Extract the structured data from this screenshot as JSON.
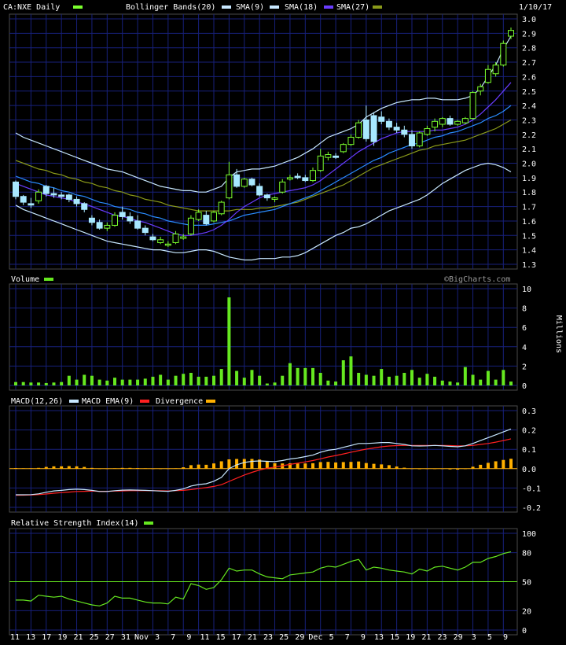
{
  "header": {
    "symbol": "CA:NXE Daily",
    "bb_label": "Bollinger Bands(20)",
    "sma9_label": "SMA(9)",
    "sma18_label": "SMA(18)",
    "sma27_label": "SMA(27)",
    "date": "1/10/17"
  },
  "watermark": "©BigCharts.com",
  "colors": {
    "background": "#000000",
    "grid": "#17207a",
    "frame": "#4a4a4a",
    "candle_up": "#000000",
    "candle_up_border": "#7bff2e",
    "candle_down": "#a8e8ff",
    "bollinger": "#c8e8ff",
    "sma9": "#6a3cff",
    "sma18": "#2a8cff",
    "sma27": "#8a9a1a",
    "volume": "#66e820",
    "macd": "#c8e8ff",
    "macd_ema": "#ff2020",
    "divergence": "#ffb000",
    "rsi": "#66e820",
    "rsi_line": "#66e820"
  },
  "chart_data": [
    {
      "panel": "price",
      "type": "candlestick",
      "title": "CA:NXE Daily",
      "ylim": [
        1.3,
        3.0
      ],
      "yticks": [
        "1.3",
        "1.4",
        "1.5",
        "1.6",
        "1.7",
        "1.8",
        "1.9",
        "2.0",
        "2.1",
        "2.2",
        "2.3",
        "2.4",
        "2.5",
        "2.6",
        "2.7",
        "2.8",
        "2.9",
        "3.0"
      ],
      "candles": [
        [
          1.87,
          1.88,
          1.75,
          1.77
        ],
        [
          1.77,
          1.78,
          1.71,
          1.73
        ],
        [
          1.72,
          1.76,
          1.69,
          1.71
        ],
        [
          1.74,
          1.82,
          1.72,
          1.8
        ],
        [
          1.84,
          1.85,
          1.77,
          1.79
        ],
        [
          1.79,
          1.83,
          1.76,
          1.78
        ],
        [
          1.78,
          1.8,
          1.75,
          1.77
        ],
        [
          1.78,
          1.79,
          1.73,
          1.75
        ],
        [
          1.75,
          1.77,
          1.7,
          1.72
        ],
        [
          1.72,
          1.73,
          1.66,
          1.68
        ],
        [
          1.62,
          1.64,
          1.57,
          1.59
        ],
        [
          1.59,
          1.61,
          1.54,
          1.55
        ],
        [
          1.55,
          1.59,
          1.53,
          1.57
        ],
        [
          1.57,
          1.66,
          1.56,
          1.64
        ],
        [
          1.66,
          1.7,
          1.61,
          1.63
        ],
        [
          1.63,
          1.66,
          1.58,
          1.6
        ],
        [
          1.6,
          1.64,
          1.54,
          1.55
        ],
        [
          1.55,
          1.57,
          1.5,
          1.52
        ],
        [
          1.49,
          1.51,
          1.46,
          1.47
        ],
        [
          1.45,
          1.49,
          1.44,
          1.47
        ],
        [
          1.44,
          1.46,
          1.42,
          1.44
        ],
        [
          1.45,
          1.53,
          1.44,
          1.51
        ],
        [
          1.48,
          1.51,
          1.47,
          1.49
        ],
        [
          1.51,
          1.64,
          1.5,
          1.62
        ],
        [
          1.61,
          1.68,
          1.6,
          1.66
        ],
        [
          1.64,
          1.67,
          1.57,
          1.58
        ],
        [
          1.6,
          1.67,
          1.59,
          1.66
        ],
        [
          1.65,
          1.74,
          1.64,
          1.73
        ],
        [
          1.76,
          2.01,
          1.75,
          1.92
        ],
        [
          1.92,
          1.96,
          1.83,
          1.84
        ],
        [
          1.84,
          1.9,
          1.83,
          1.89
        ],
        [
          1.89,
          1.9,
          1.84,
          1.85
        ],
        [
          1.84,
          1.86,
          1.77,
          1.78
        ],
        [
          1.78,
          1.79,
          1.74,
          1.76
        ],
        [
          1.75,
          1.77,
          1.73,
          1.76
        ],
        [
          1.8,
          1.89,
          1.79,
          1.87
        ],
        [
          1.89,
          1.92,
          1.88,
          1.9
        ],
        [
          1.91,
          1.93,
          1.89,
          1.9
        ],
        [
          1.9,
          1.92,
          1.87,
          1.88
        ],
        [
          1.88,
          1.97,
          1.87,
          1.95
        ],
        [
          1.95,
          2.1,
          1.94,
          2.05
        ],
        [
          2.04,
          2.08,
          2.02,
          2.06
        ],
        [
          2.05,
          2.07,
          2.03,
          2.04
        ],
        [
          2.08,
          2.14,
          2.07,
          2.13
        ],
        [
          2.13,
          2.2,
          2.12,
          2.18
        ],
        [
          2.18,
          2.3,
          2.17,
          2.28
        ],
        [
          2.3,
          2.4,
          2.15,
          2.17
        ],
        [
          2.33,
          2.35,
          2.12,
          2.15
        ],
        [
          2.32,
          2.36,
          2.27,
          2.29
        ],
        [
          2.29,
          2.31,
          2.23,
          2.25
        ],
        [
          2.25,
          2.28,
          2.21,
          2.23
        ],
        [
          2.23,
          2.26,
          2.18,
          2.2
        ],
        [
          2.2,
          2.23,
          2.1,
          2.12
        ],
        [
          2.12,
          2.22,
          2.11,
          2.21
        ],
        [
          2.2,
          2.26,
          2.19,
          2.24
        ],
        [
          2.25,
          2.31,
          2.22,
          2.29
        ],
        [
          2.27,
          2.32,
          2.25,
          2.31
        ],
        [
          2.31,
          2.33,
          2.26,
          2.27
        ],
        [
          2.27,
          2.3,
          2.26,
          2.29
        ],
        [
          2.28,
          2.32,
          2.27,
          2.31
        ],
        [
          2.31,
          2.5,
          2.3,
          2.49
        ],
        [
          2.5,
          2.55,
          2.47,
          2.53
        ],
        [
          2.56,
          2.68,
          2.55,
          2.65
        ],
        [
          2.62,
          2.7,
          2.6,
          2.68
        ],
        [
          2.68,
          2.85,
          2.67,
          2.83
        ],
        [
          2.88,
          2.94,
          2.86,
          2.92
        ]
      ],
      "bollinger_upper": [
        2.21,
        2.18,
        2.16,
        2.14,
        2.12,
        2.1,
        2.08,
        2.06,
        2.04,
        2.02,
        2.0,
        1.98,
        1.96,
        1.95,
        1.94,
        1.92,
        1.9,
        1.88,
        1.86,
        1.84,
        1.83,
        1.82,
        1.81,
        1.81,
        1.8,
        1.8,
        1.82,
        1.84,
        1.9,
        1.94,
        1.95,
        1.96,
        1.96,
        1.97,
        1.98,
        2.0,
        2.02,
        2.04,
        2.07,
        2.1,
        2.14,
        2.18,
        2.2,
        2.22,
        2.24,
        2.27,
        2.32,
        2.35,
        2.38,
        2.4,
        2.42,
        2.43,
        2.44,
        2.44,
        2.45,
        2.45,
        2.44,
        2.44,
        2.44,
        2.45,
        2.47,
        2.52,
        2.6,
        2.68,
        2.79,
        2.88
      ],
      "bollinger_lower": [
        1.71,
        1.68,
        1.66,
        1.64,
        1.62,
        1.6,
        1.58,
        1.56,
        1.54,
        1.52,
        1.5,
        1.48,
        1.46,
        1.45,
        1.44,
        1.43,
        1.42,
        1.41,
        1.4,
        1.4,
        1.39,
        1.38,
        1.38,
        1.39,
        1.4,
        1.4,
        1.39,
        1.37,
        1.35,
        1.34,
        1.33,
        1.33,
        1.34,
        1.34,
        1.34,
        1.35,
        1.35,
        1.36,
        1.38,
        1.41,
        1.44,
        1.47,
        1.5,
        1.52,
        1.55,
        1.56,
        1.58,
        1.61,
        1.64,
        1.67,
        1.69,
        1.71,
        1.73,
        1.75,
        1.78,
        1.82,
        1.86,
        1.89,
        1.92,
        1.95,
        1.97,
        1.99,
        2.0,
        1.99,
        1.97,
        1.94
      ],
      "sma9": [
        1.86,
        1.84,
        1.82,
        1.8,
        1.78,
        1.77,
        1.76,
        1.75,
        1.73,
        1.72,
        1.7,
        1.68,
        1.66,
        1.64,
        1.63,
        1.62,
        1.6,
        1.59,
        1.57,
        1.55,
        1.53,
        1.51,
        1.5,
        1.5,
        1.51,
        1.52,
        1.54,
        1.57,
        1.61,
        1.66,
        1.7,
        1.73,
        1.76,
        1.78,
        1.79,
        1.8,
        1.81,
        1.82,
        1.83,
        1.85,
        1.88,
        1.92,
        1.96,
        2.0,
        2.04,
        2.08,
        2.11,
        2.14,
        2.17,
        2.19,
        2.21,
        2.22,
        2.22,
        2.22,
        2.22,
        2.23,
        2.23,
        2.24,
        2.25,
        2.27,
        2.3,
        2.34,
        2.39,
        2.44,
        2.5,
        2.56
      ],
      "sma18": [
        1.91,
        1.89,
        1.87,
        1.86,
        1.84,
        1.83,
        1.81,
        1.8,
        1.78,
        1.77,
        1.75,
        1.73,
        1.72,
        1.7,
        1.69,
        1.68,
        1.66,
        1.65,
        1.63,
        1.62,
        1.6,
        1.59,
        1.58,
        1.57,
        1.57,
        1.57,
        1.58,
        1.59,
        1.6,
        1.62,
        1.64,
        1.65,
        1.66,
        1.67,
        1.68,
        1.7,
        1.72,
        1.74,
        1.76,
        1.78,
        1.81,
        1.84,
        1.87,
        1.9,
        1.93,
        1.96,
        1.99,
        2.02,
        2.04,
        2.07,
        2.09,
        2.11,
        2.13,
        2.14,
        2.16,
        2.18,
        2.19,
        2.21,
        2.22,
        2.24,
        2.26,
        2.28,
        2.31,
        2.33,
        2.36,
        2.4
      ],
      "sma27": [
        2.02,
        2.0,
        1.98,
        1.96,
        1.95,
        1.93,
        1.92,
        1.9,
        1.89,
        1.87,
        1.86,
        1.84,
        1.83,
        1.81,
        1.8,
        1.78,
        1.77,
        1.75,
        1.74,
        1.73,
        1.71,
        1.7,
        1.69,
        1.68,
        1.67,
        1.67,
        1.67,
        1.67,
        1.67,
        1.68,
        1.68,
        1.68,
        1.69,
        1.69,
        1.7,
        1.71,
        1.72,
        1.73,
        1.75,
        1.77,
        1.79,
        1.81,
        1.83,
        1.85,
        1.88,
        1.91,
        1.94,
        1.97,
        1.99,
        2.01,
        2.03,
        2.05,
        2.07,
        2.09,
        2.1,
        2.12,
        2.13,
        2.14,
        2.15,
        2.16,
        2.18,
        2.2,
        2.22,
        2.24,
        2.27,
        2.3
      ]
    },
    {
      "panel": "volume",
      "type": "bar",
      "title": "Volume",
      "ylabel": "Millions",
      "ylim": [
        0,
        10
      ],
      "yticks": [
        "0",
        "2",
        "4",
        "6",
        "8",
        "10"
      ],
      "values": [
        0.35,
        0.35,
        0.3,
        0.3,
        0.25,
        0.3,
        0.35,
        1.0,
        0.6,
        1.1,
        1.0,
        0.6,
        0.5,
        0.8,
        0.6,
        0.6,
        0.6,
        0.7,
        0.9,
        1.1,
        0.6,
        1.0,
        1.2,
        1.3,
        0.9,
        0.9,
        1.0,
        1.7,
        9.1,
        1.5,
        0.8,
        1.6,
        1.0,
        0.2,
        0.3,
        1.0,
        2.3,
        1.8,
        1.8,
        1.8,
        1.3,
        0.5,
        0.4,
        2.6,
        3.0,
        1.3,
        1.1,
        1.0,
        1.7,
        0.9,
        1.0,
        1.3,
        1.6,
        0.8,
        1.2,
        0.9,
        0.5,
        0.4,
        0.3,
        1.9,
        1.1,
        0.6,
        1.5,
        0.6,
        1.6,
        0.4
      ]
    },
    {
      "panel": "macd",
      "type": "line",
      "title": "MACD(12,26)",
      "ylim": [
        -0.2,
        0.3
      ],
      "yticks": [
        "-0.2",
        "-0.1",
        "0.0",
        "0.1",
        "0.2",
        "0.3"
      ],
      "series": [
        {
          "name": "MACD(12,26)",
          "values": [
            -0.135,
            -0.135,
            -0.134,
            -0.13,
            -0.122,
            -0.115,
            -0.112,
            -0.108,
            -0.106,
            -0.108,
            -0.112,
            -0.118,
            -0.118,
            -0.114,
            -0.111,
            -0.11,
            -0.111,
            -0.112,
            -0.114,
            -0.116,
            -0.117,
            -0.112,
            -0.105,
            -0.09,
            -0.082,
            -0.078,
            -0.065,
            -0.045,
            0.0,
            0.02,
            0.032,
            0.038,
            0.04,
            0.038,
            0.036,
            0.042,
            0.05,
            0.055,
            0.062,
            0.07,
            0.085,
            0.095,
            0.1,
            0.11,
            0.12,
            0.13,
            0.13,
            0.132,
            0.135,
            0.135,
            0.13,
            0.125,
            0.118,
            0.117,
            0.118,
            0.12,
            0.118,
            0.115,
            0.113,
            0.118,
            0.13,
            0.145,
            0.16,
            0.175,
            0.19,
            0.205
          ]
        },
        {
          "name": "MACD EMA(9)",
          "values": [
            -0.138,
            -0.137,
            -0.136,
            -0.134,
            -0.131,
            -0.127,
            -0.124,
            -0.121,
            -0.118,
            -0.117,
            -0.116,
            -0.117,
            -0.117,
            -0.116,
            -0.115,
            -0.114,
            -0.114,
            -0.114,
            -0.114,
            -0.114,
            -0.115,
            -0.114,
            -0.112,
            -0.108,
            -0.103,
            -0.098,
            -0.092,
            -0.083,
            -0.066,
            -0.049,
            -0.033,
            -0.019,
            -0.007,
            0.002,
            0.008,
            0.015,
            0.022,
            0.028,
            0.035,
            0.042,
            0.051,
            0.06,
            0.068,
            0.076,
            0.085,
            0.093,
            0.101,
            0.107,
            0.113,
            0.117,
            0.119,
            0.12,
            0.12,
            0.12,
            0.12,
            0.12,
            0.12,
            0.119,
            0.118,
            0.118,
            0.12,
            0.125,
            0.13,
            0.137,
            0.145,
            0.154
          ]
        },
        {
          "name": "Divergence",
          "values": [
            0.003,
            0.002,
            0.002,
            0.004,
            0.009,
            0.012,
            0.012,
            0.013,
            0.012,
            0.009,
            0.004,
            -0.001,
            -0.001,
            0.002,
            0.004,
            0.004,
            0.003,
            0.002,
            0.0,
            -0.002,
            -0.002,
            0.002,
            0.007,
            0.018,
            0.021,
            0.02,
            0.027,
            0.038,
            0.048,
            0.05,
            0.05,
            0.05,
            0.047,
            0.036,
            0.028,
            0.027,
            0.028,
            0.027,
            0.027,
            0.028,
            0.034,
            0.035,
            0.032,
            0.034,
            0.035,
            0.037,
            0.029,
            0.025,
            0.022,
            0.018,
            0.011,
            0.005,
            -0.002,
            -0.003,
            -0.002,
            0.0,
            -0.002,
            -0.004,
            -0.005,
            0.0,
            0.01,
            0.02,
            0.03,
            0.038,
            0.045,
            0.051
          ]
        }
      ]
    },
    {
      "panel": "rsi",
      "type": "line",
      "title": "Relative Strength Index(14)",
      "ylim": [
        0,
        100
      ],
      "yticks": [
        "0",
        "20",
        "50",
        "80",
        "100"
      ],
      "reference_line": 50,
      "values": [
        31,
        31,
        30,
        36,
        35,
        34,
        35,
        32,
        30,
        28,
        26,
        25,
        28,
        35,
        33,
        33,
        31,
        29,
        28,
        28,
        27,
        34,
        32,
        48,
        46,
        42,
        44,
        52,
        64,
        61,
        62,
        62,
        58,
        55,
        54,
        53,
        57,
        58,
        59,
        60,
        64,
        66,
        65,
        68,
        71,
        73,
        62,
        65,
        64,
        62,
        61,
        60,
        58,
        63,
        61,
        65,
        66,
        64,
        62,
        65,
        70,
        70,
        74,
        76,
        79,
        81
      ]
    }
  ],
  "x_labels": [
    "11",
    "13",
    "17",
    "19",
    "21",
    "25",
    "27",
    "31",
    "Nov",
    "3",
    "7",
    "9",
    "11",
    "15",
    "17",
    "21",
    "23",
    "25",
    "29",
    "Dec",
    "5",
    "7",
    "9",
    "13",
    "15",
    "19",
    "21",
    "23",
    "29",
    "3",
    "5",
    "9"
  ]
}
